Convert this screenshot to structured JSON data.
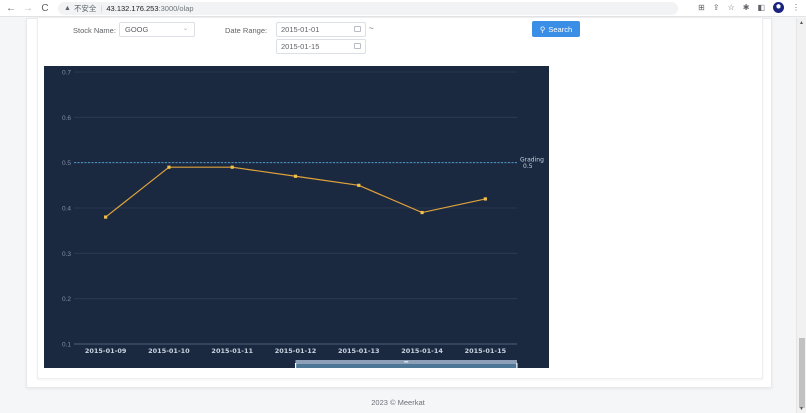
{
  "browser": {
    "back_icon": "←",
    "forward_icon": "→",
    "reload_icon": "C",
    "security_warning_icon": "▲",
    "security_label": "不安全",
    "separator": "|",
    "url_host": "43.132.176.253",
    "url_path": ":3000/olap",
    "toolbar_icons": [
      "translate-icon",
      "share-icon",
      "star-icon",
      "extensions-icon",
      "sidepanel-icon",
      "profile-avatar",
      "menu-icon"
    ]
  },
  "form": {
    "stock_label": "Stock Name:",
    "stock_value": "GOOG",
    "date_range_label": "Date Range:",
    "date_start": "2015-01-01",
    "date_end": "2015-01-15",
    "range_separator": "~",
    "search_label": "Search",
    "search_icon": "⚲"
  },
  "colors": {
    "chart_bg": "#1b2940",
    "line": "#e0a33a",
    "point": "#f0c048",
    "grading_line": "#4a9cc9",
    "grid": "#2c3d57",
    "axis_text": "#7f8ea6",
    "button": "#3a8ee6"
  },
  "chart_data": {
    "type": "line",
    "title": "",
    "xlabel": "",
    "ylabel": "",
    "x": [
      "2015-01-09",
      "2015-01-10",
      "2015-01-11",
      "2015-01-12",
      "2015-01-13",
      "2015-01-14",
      "2015-01-15"
    ],
    "series": [
      {
        "name": "GOOG",
        "values": [
          0.38,
          0.49,
          0.49,
          0.47,
          0.45,
          0.39,
          0.42
        ]
      }
    ],
    "yticks": [
      "0.1",
      "0.2",
      "0.3",
      "0.4",
      "0.5",
      "0.6",
      "0.7"
    ],
    "ylim": [
      0.1,
      0.7
    ],
    "grid": true,
    "mark_line": {
      "label": "Grading",
      "value": "0.5"
    },
    "data_zoom": {
      "type": "slider",
      "start_pct": 50,
      "end_pct": 100
    }
  },
  "footer": {
    "text": "2023 © Meerkat"
  }
}
